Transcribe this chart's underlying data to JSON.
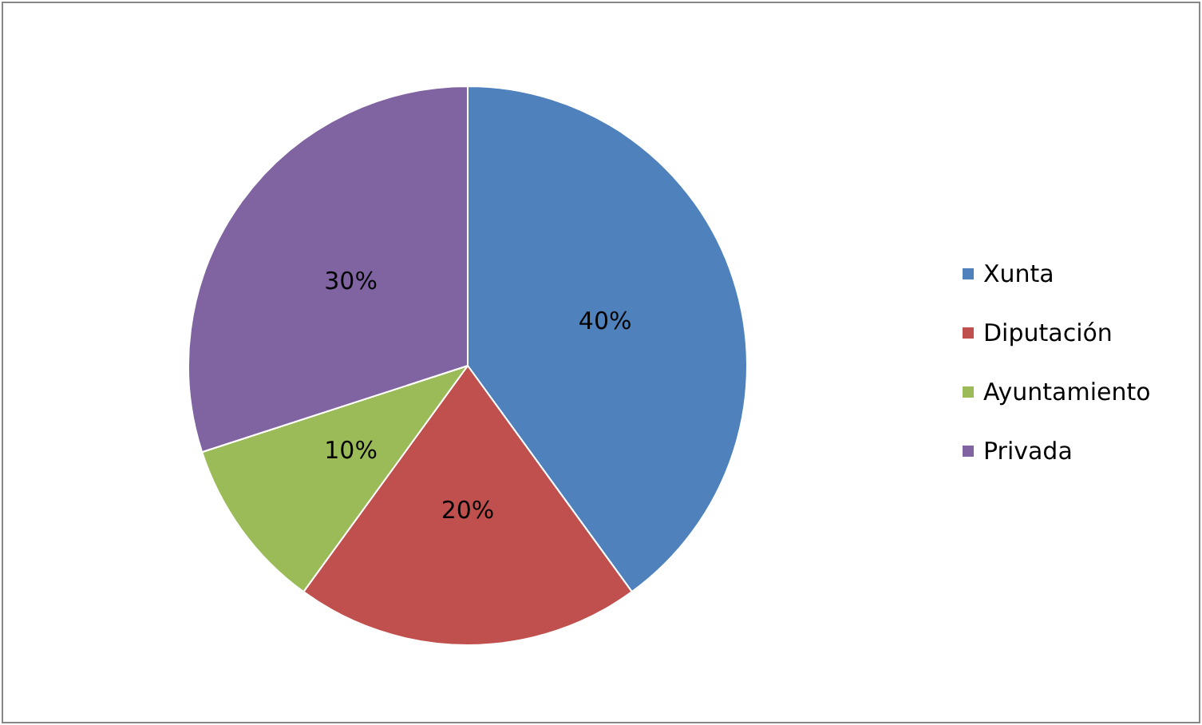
{
  "chart_data": {
    "type": "pie",
    "categories": [
      "Xunta",
      "Diputación",
      "Ayuntamiento",
      "Privada"
    ],
    "values": [
      40,
      20,
      10,
      30
    ],
    "colors": [
      "#4f81bd",
      "#c0504d",
      "#9bbb59",
      "#8064a2"
    ],
    "value_labels": [
      "40%",
      "20%",
      "10%",
      "30%"
    ],
    "legend": "right"
  }
}
